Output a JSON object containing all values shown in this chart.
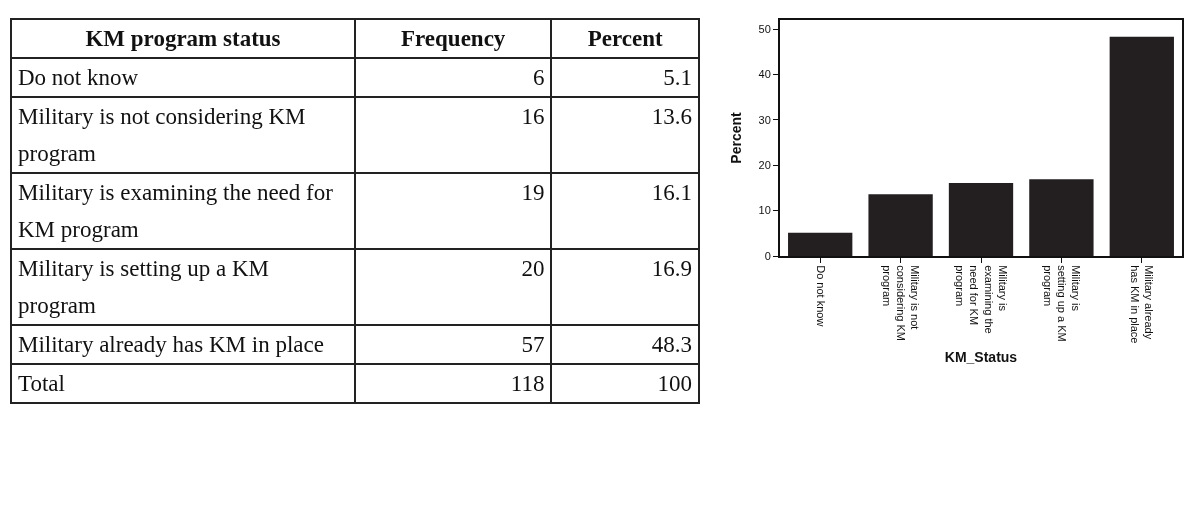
{
  "chart_data": [
    {
      "type": "other",
      "data_labels": true,
      "title": "KM program status",
      "categories": [
        "Do not know",
        "Military is not considering KM program",
        "Military is examining the need for KM program",
        "Military is setting up a KM program",
        "Military already has KM in place",
        "Total"
      ],
      "series": [
        {
          "name": "Frequency",
          "values": [
            6,
            16,
            19,
            20,
            57,
            118
          ]
        },
        {
          "name": "Percent",
          "values": [
            5.1,
            13.6,
            16.1,
            16.9,
            48.3,
            100
          ]
        }
      ]
    },
    {
      "type": "bar",
      "categories": [
        "Do not know",
        "Military is not considering KM program",
        "Military is examining the need for KM program",
        "Military is setting up a KM program",
        "Military already has KM in place"
      ],
      "values": [
        5.1,
        13.6,
        16.1,
        16.9,
        48.3
      ],
      "color": "#231f20",
      "xlabel": "KM_Status",
      "ylabel": "Percent",
      "ylim": [
        0,
        52
      ],
      "yticks": [
        0,
        10,
        20,
        30,
        40,
        50
      ],
      "grid": false
    }
  ]
}
